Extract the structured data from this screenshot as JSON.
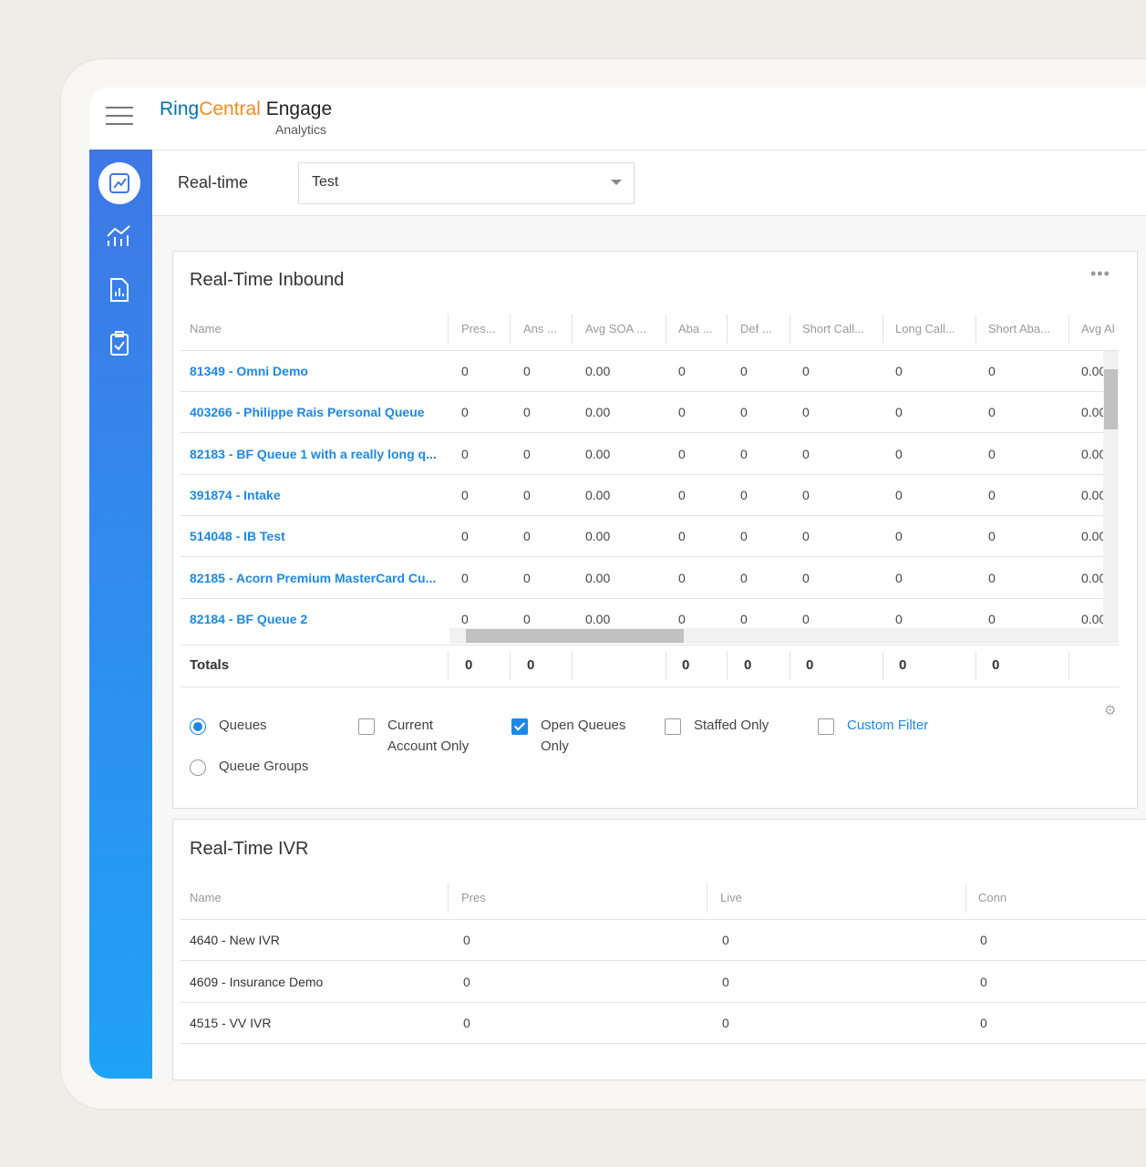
{
  "header": {
    "brand_ring": "Ring",
    "brand_central": "Central",
    "product": "Engage",
    "module": "Analytics"
  },
  "toolbar": {
    "view_label": "Real-time",
    "dashboard_select": "Test"
  },
  "inbound": {
    "title": "Real-Time Inbound",
    "columns": [
      "Name",
      "Pres...",
      "Ans ...",
      "Avg SOA ...",
      "Aba ...",
      "Def ...",
      "Short Call...",
      "Long Call...",
      "Short Aba...",
      "Avg Al"
    ],
    "rows": [
      {
        "name": "81349 - Omni Demo",
        "values": [
          "0",
          "0",
          "0.00",
          "0",
          "0",
          "0",
          "0",
          "0",
          "0.00"
        ]
      },
      {
        "name": "403266 - Philippe Rais Personal Queue",
        "values": [
          "0",
          "0",
          "0.00",
          "0",
          "0",
          "0",
          "0",
          "0",
          "0.00"
        ]
      },
      {
        "name": "82183 - BF Queue 1 with a really long q...",
        "values": [
          "0",
          "0",
          "0.00",
          "0",
          "0",
          "0",
          "0",
          "0",
          "0.00"
        ]
      },
      {
        "name": "391874 - Intake",
        "values": [
          "0",
          "0",
          "0.00",
          "0",
          "0",
          "0",
          "0",
          "0",
          "0.00"
        ]
      },
      {
        "name": "514048 - IB Test",
        "values": [
          "0",
          "0",
          "0.00",
          "0",
          "0",
          "0",
          "0",
          "0",
          "0.00"
        ]
      },
      {
        "name": "82185 - Acorn Premium MasterCard Cu...",
        "values": [
          "0",
          "0",
          "0.00",
          "0",
          "0",
          "0",
          "0",
          "0",
          "0.00"
        ]
      },
      {
        "name": "82184 - BF Queue 2",
        "values": [
          "0",
          "0",
          "0.00",
          "0",
          "0",
          "0",
          "0",
          "0",
          "0.00"
        ]
      }
    ],
    "totals": {
      "label": "Totals",
      "values": [
        "0",
        "0",
        null,
        "0",
        "0",
        "0",
        "0",
        "0",
        null
      ]
    },
    "options": [
      {
        "label": "Queues",
        "type": "radio",
        "checked": true
      },
      {
        "label": "Queue Groups",
        "type": "radio",
        "checked": false
      },
      {
        "label": "Current Account Only",
        "type": "checkbox",
        "checked": false
      },
      {
        "label": "Open Queues Only",
        "type": "checkbox",
        "checked": true
      },
      {
        "label": "Staffed Only",
        "type": "checkbox",
        "checked": false
      },
      {
        "label": "Custom Filter",
        "type": "checkbox",
        "checked": false
      }
    ]
  },
  "ivr": {
    "title": "Real-Time IVR",
    "columns": [
      "Name",
      "Pres",
      "Live",
      "Conn"
    ],
    "rows": [
      {
        "name": "4640 - New IVR",
        "values": [
          "0",
          "0",
          "0"
        ]
      },
      {
        "name": "4609 - Insurance Demo",
        "values": [
          "0",
          "0",
          "0"
        ]
      },
      {
        "name": "4515 - VV IVR",
        "values": [
          "0",
          "0",
          "0"
        ]
      }
    ]
  }
}
